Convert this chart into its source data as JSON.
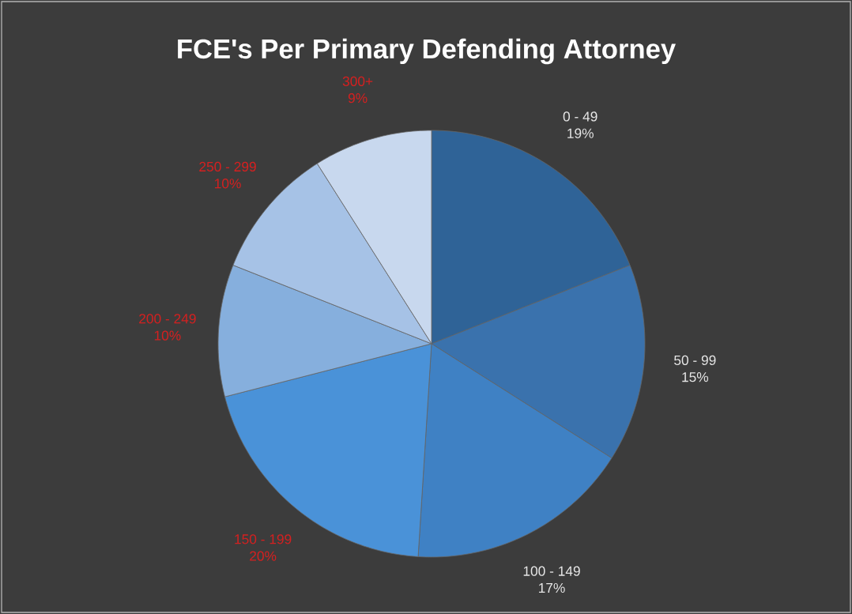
{
  "chart_data": {
    "type": "pie",
    "title": "FCE's Per Primary Defending Attorney",
    "categories": [
      "0 - 49",
      "50 - 99",
      "100 - 149",
      "150 - 199",
      "200 - 249",
      "250 - 299",
      "300+"
    ],
    "values": [
      19,
      15,
      17,
      20,
      10,
      10,
      9
    ],
    "value_labels": [
      "19%",
      "15%",
      "17%",
      "20%",
      "10%",
      "10%",
      "9%"
    ],
    "colors": [
      "#2f6397",
      "#3a72ad",
      "#3f81c4",
      "#4a92d8",
      "#86afdd",
      "#a6c2e6",
      "#c8d8ee"
    ]
  }
}
